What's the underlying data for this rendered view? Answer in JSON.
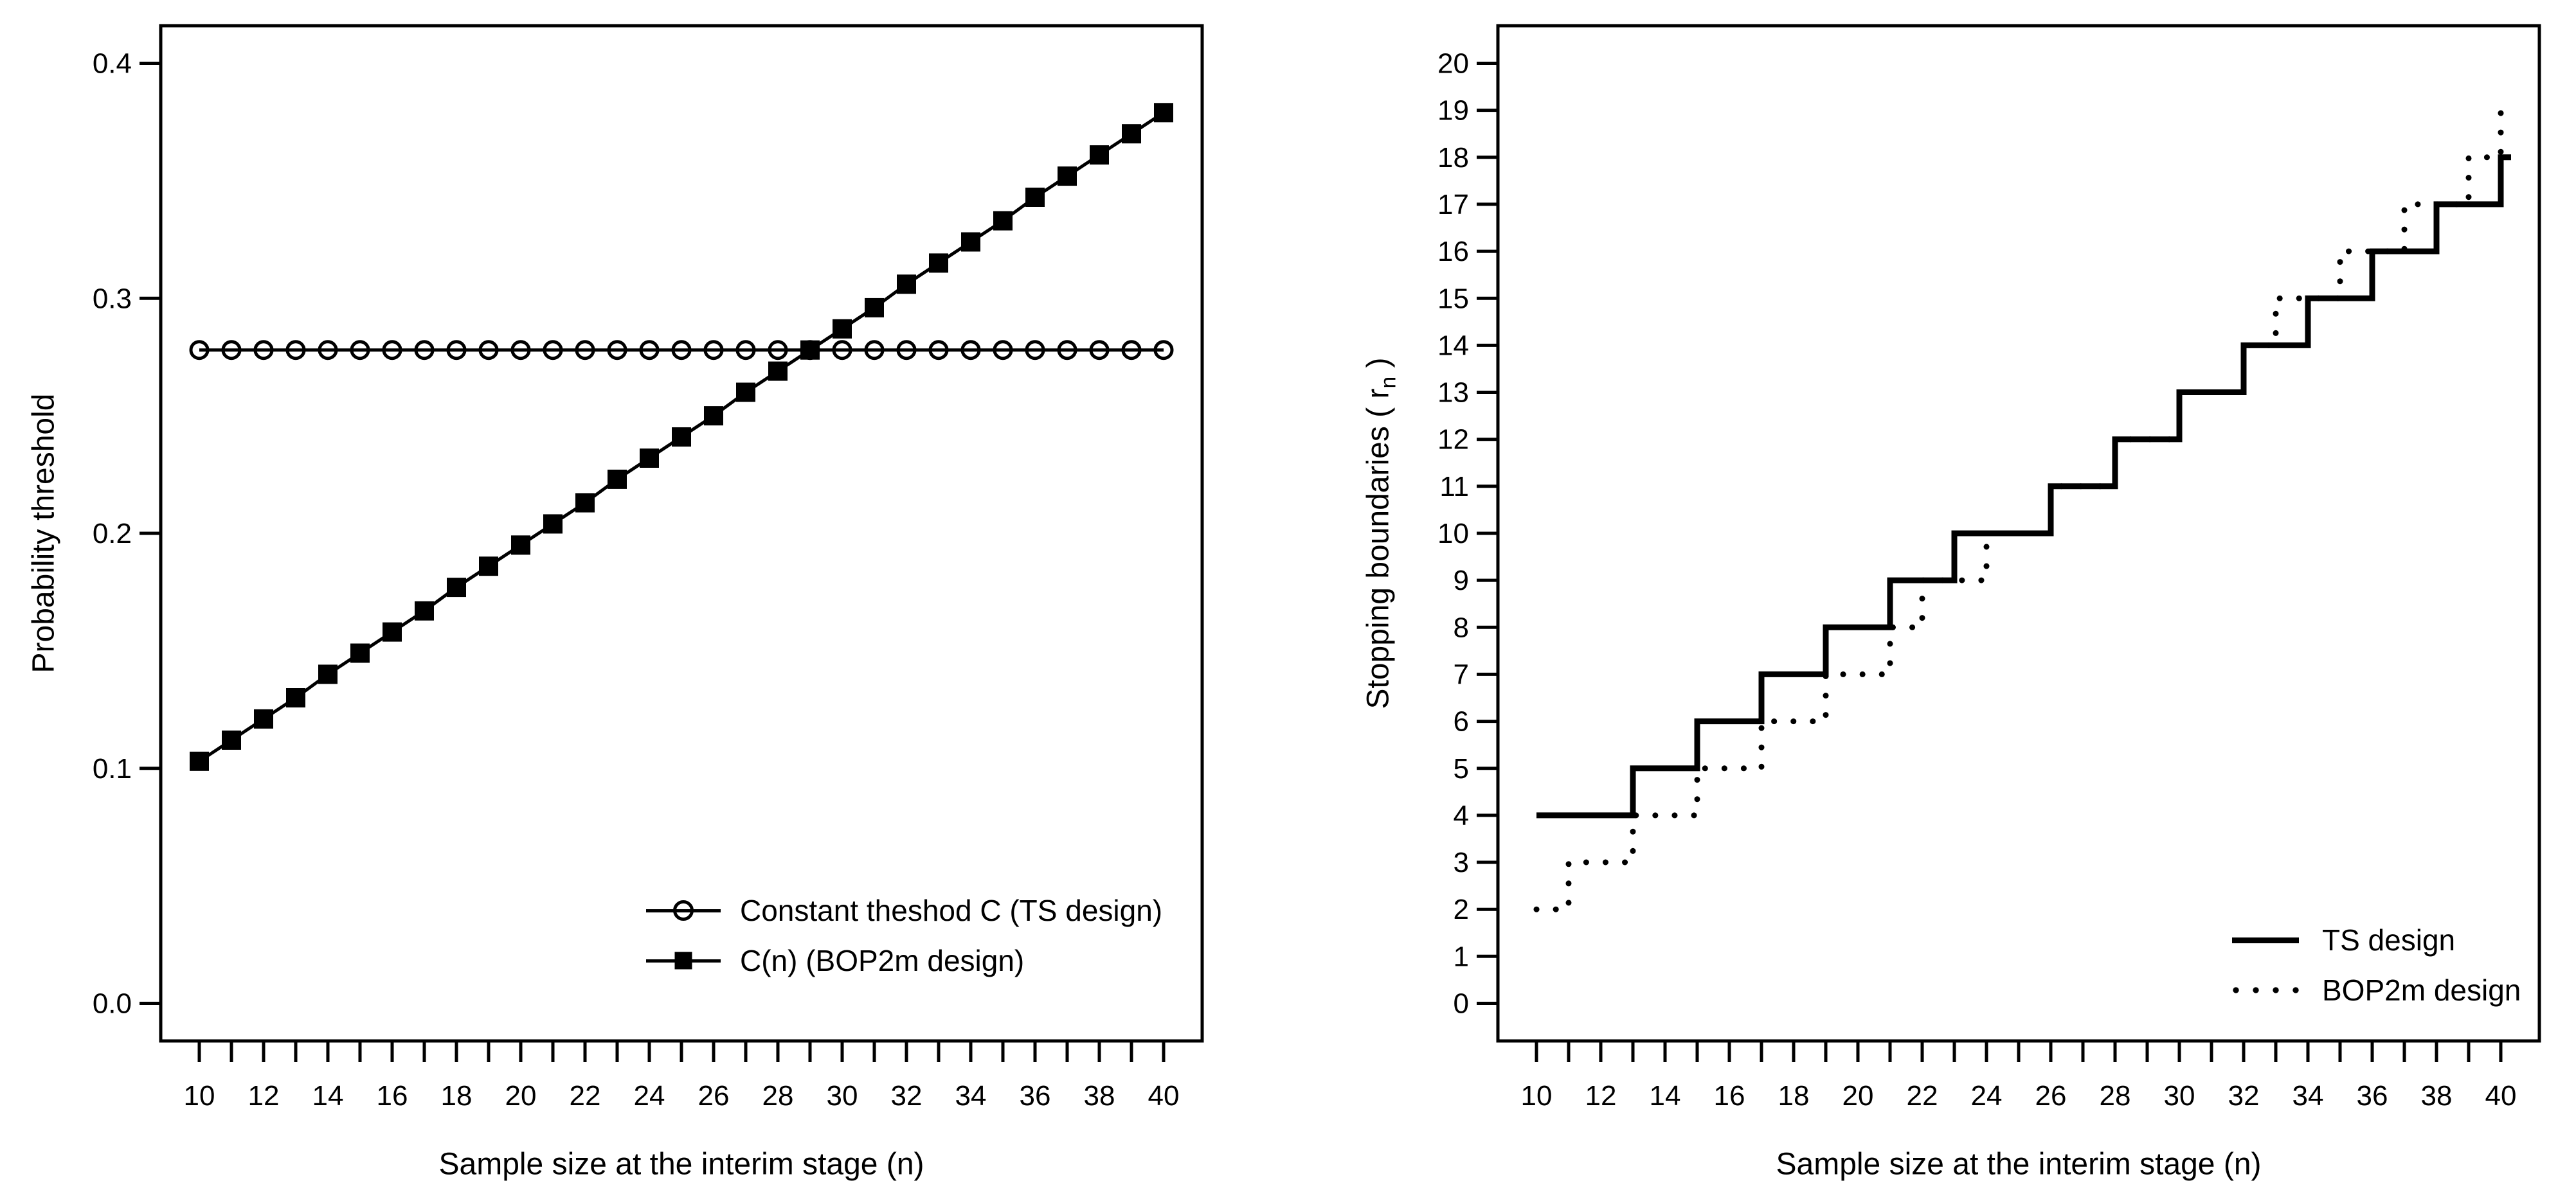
{
  "background_color": "#ffffff",
  "foreground_color": "#000000",
  "chart_data": [
    {
      "type": "line",
      "title": "",
      "xlabel": "Sample size at the interim stage (n)",
      "ylabel": "Probability threshold",
      "xlim": [
        10,
        40
      ],
      "ylim": [
        0.0,
        0.4
      ],
      "grid": false,
      "x": [
        10,
        11,
        12,
        13,
        14,
        15,
        16,
        17,
        18,
        19,
        20,
        21,
        22,
        23,
        24,
        25,
        26,
        27,
        28,
        29,
        30,
        31,
        32,
        33,
        34,
        35,
        36,
        37,
        38,
        39,
        40
      ],
      "xtick_labels": [
        10,
        12,
        14,
        16,
        18,
        20,
        22,
        24,
        26,
        28,
        30,
        32,
        34,
        36,
        38,
        40
      ],
      "yticks": [
        0.0,
        0.1,
        0.2,
        0.3,
        0.4
      ],
      "ytick_labels": [
        "0.0",
        "0.1",
        "0.2",
        "0.3",
        "0.4"
      ],
      "legend_position": "bottom-right-inside",
      "series": [
        {
          "name": "Constant theshod C (TS design)",
          "marker": "circle-open",
          "line": "solid",
          "values": [
            0.278,
            0.278,
            0.278,
            0.278,
            0.278,
            0.278,
            0.278,
            0.278,
            0.278,
            0.278,
            0.278,
            0.278,
            0.278,
            0.278,
            0.278,
            0.278,
            0.278,
            0.278,
            0.278,
            0.278,
            0.278,
            0.278,
            0.278,
            0.278,
            0.278,
            0.278,
            0.278,
            0.278,
            0.278,
            0.278,
            0.278
          ]
        },
        {
          "name": "C(n) (BOP2m design)",
          "marker": "square-filled",
          "line": "solid",
          "values": [
            0.103,
            0.112,
            0.121,
            0.13,
            0.14,
            0.149,
            0.158,
            0.167,
            0.177,
            0.186,
            0.195,
            0.204,
            0.213,
            0.223,
            0.232,
            0.241,
            0.25,
            0.26,
            0.269,
            0.278,
            0.287,
            0.296,
            0.306,
            0.315,
            0.324,
            0.333,
            0.343,
            0.352,
            0.361,
            0.37,
            0.379
          ]
        }
      ]
    },
    {
      "type": "step",
      "title": "",
      "xlabel": "Sample size at the interim stage (n)",
      "ylabel": "Stopping boundaries ( r_n )",
      "ylabel_parts": {
        "prefix": "Stopping boundaries ( r",
        "sub": "n",
        "suffix": " )"
      },
      "xlim": [
        10,
        40
      ],
      "ylim": [
        0,
        20
      ],
      "grid": false,
      "x": [
        10,
        11,
        12,
        13,
        14,
        15,
        16,
        17,
        18,
        19,
        20,
        21,
        22,
        23,
        24,
        25,
        26,
        27,
        28,
        29,
        30,
        31,
        32,
        33,
        34,
        35,
        36,
        37,
        38,
        39,
        40
      ],
      "xtick_labels": [
        10,
        12,
        14,
        16,
        18,
        20,
        22,
        24,
        26,
        28,
        30,
        32,
        34,
        36,
        38,
        40
      ],
      "yticks": [
        0,
        1,
        2,
        3,
        4,
        5,
        6,
        7,
        8,
        9,
        10,
        11,
        12,
        13,
        14,
        15,
        16,
        17,
        18,
        19,
        20
      ],
      "ytick_labels": [
        "0",
        "1",
        "2",
        "3",
        "4",
        "5",
        "6",
        "7",
        "8",
        "9",
        "10",
        "11",
        "12",
        "13",
        "14",
        "15",
        "16",
        "17",
        "18",
        "19",
        "20"
      ],
      "legend_position": "bottom-right-inside",
      "series": [
        {
          "name": "TS design",
          "style": "solid",
          "values": [
            4,
            4,
            4,
            5,
            5,
            6,
            6,
            7,
            7,
            8,
            8,
            9,
            9,
            10,
            10,
            10,
            11,
            11,
            12,
            12,
            13,
            13,
            14,
            14,
            15,
            15,
            16,
            16,
            17,
            17,
            18
          ]
        },
        {
          "name": "BOP2m design",
          "style": "dotted",
          "values": [
            2,
            3,
            3,
            4,
            4,
            5,
            5,
            6,
            6,
            7,
            7,
            8,
            9,
            9,
            10,
            10,
            11,
            11,
            12,
            12,
            13,
            13,
            14,
            15,
            15,
            16,
            16,
            17,
            17,
            18,
            19
          ]
        }
      ]
    }
  ]
}
